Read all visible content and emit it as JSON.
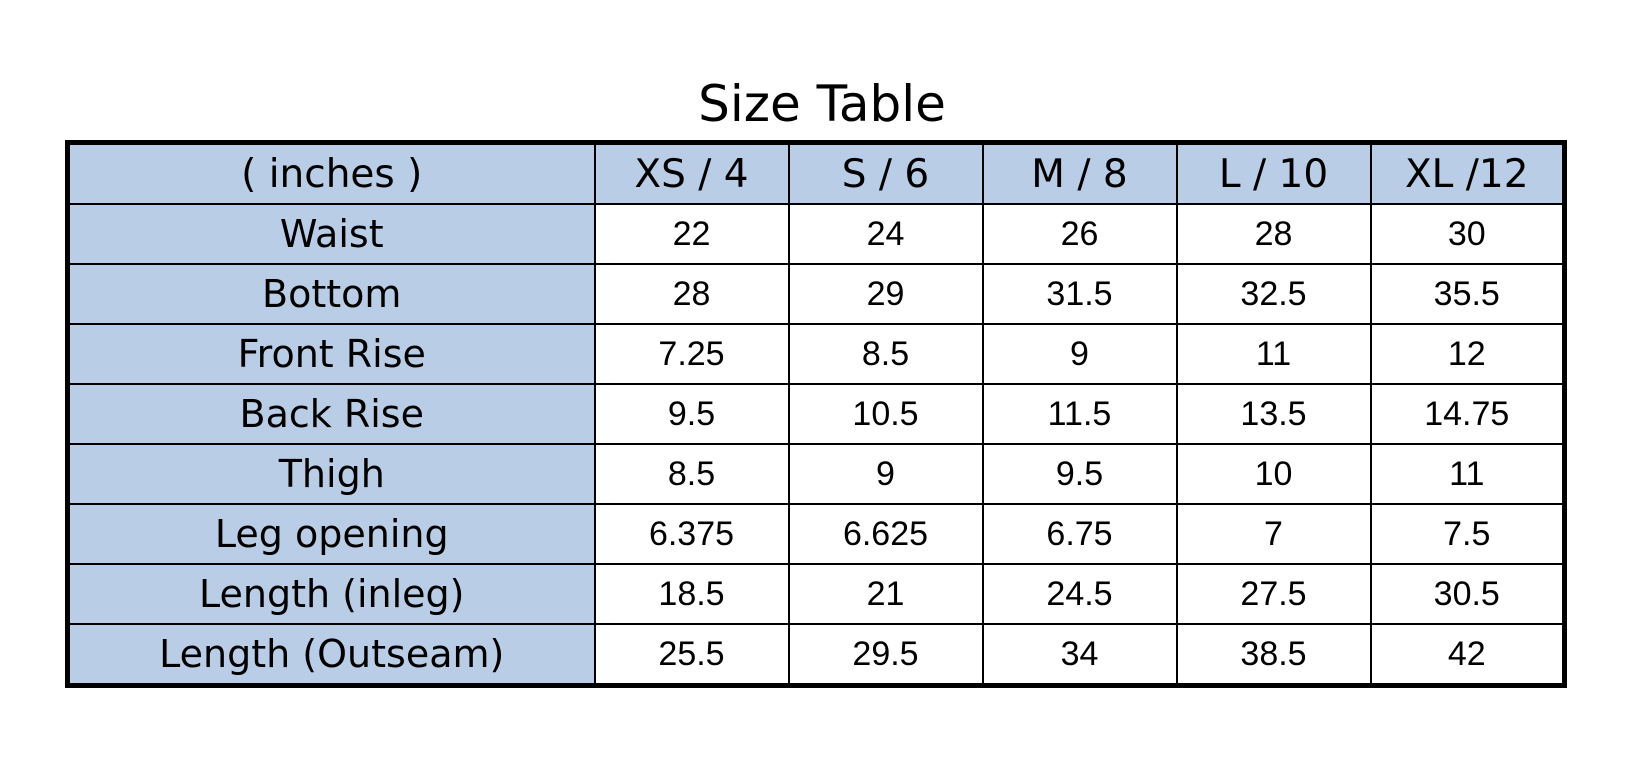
{
  "title": "Size Table",
  "table": {
    "corner_label": "( inches )",
    "columns": [
      "XS / 4",
      "S / 6",
      "M / 8",
      "L / 10",
      "XL /12"
    ],
    "rows": [
      {
        "label": "Waist",
        "values": [
          "22",
          "24",
          "26",
          "28",
          "30"
        ]
      },
      {
        "label": "Bottom",
        "values": [
          "28",
          "29",
          "31.5",
          "32.5",
          "35.5"
        ]
      },
      {
        "label": "Front Rise",
        "values": [
          "7.25",
          "8.5",
          "9",
          "11",
          "12"
        ]
      },
      {
        "label": "Back Rise",
        "values": [
          "9.5",
          "10.5",
          "11.5",
          "13.5",
          "14.75"
        ]
      },
      {
        "label": "Thigh",
        "values": [
          "8.5",
          "9",
          "9.5",
          "10",
          "11"
        ]
      },
      {
        "label": "Leg opening",
        "values": [
          "6.375",
          "6.625",
          "6.75",
          "7",
          "7.5"
        ]
      },
      {
        "label": "Length (inleg)",
        "values": [
          "18.5",
          "21",
          "24.5",
          "27.5",
          "30.5"
        ]
      },
      {
        "label": "Length (Outseam)",
        "values": [
          "25.5",
          "29.5",
          "34",
          "38.5",
          "42"
        ]
      }
    ]
  },
  "colors": {
    "header_fill": "#b9cde6",
    "border": "#000000",
    "cell_fill": "#ffffff"
  }
}
